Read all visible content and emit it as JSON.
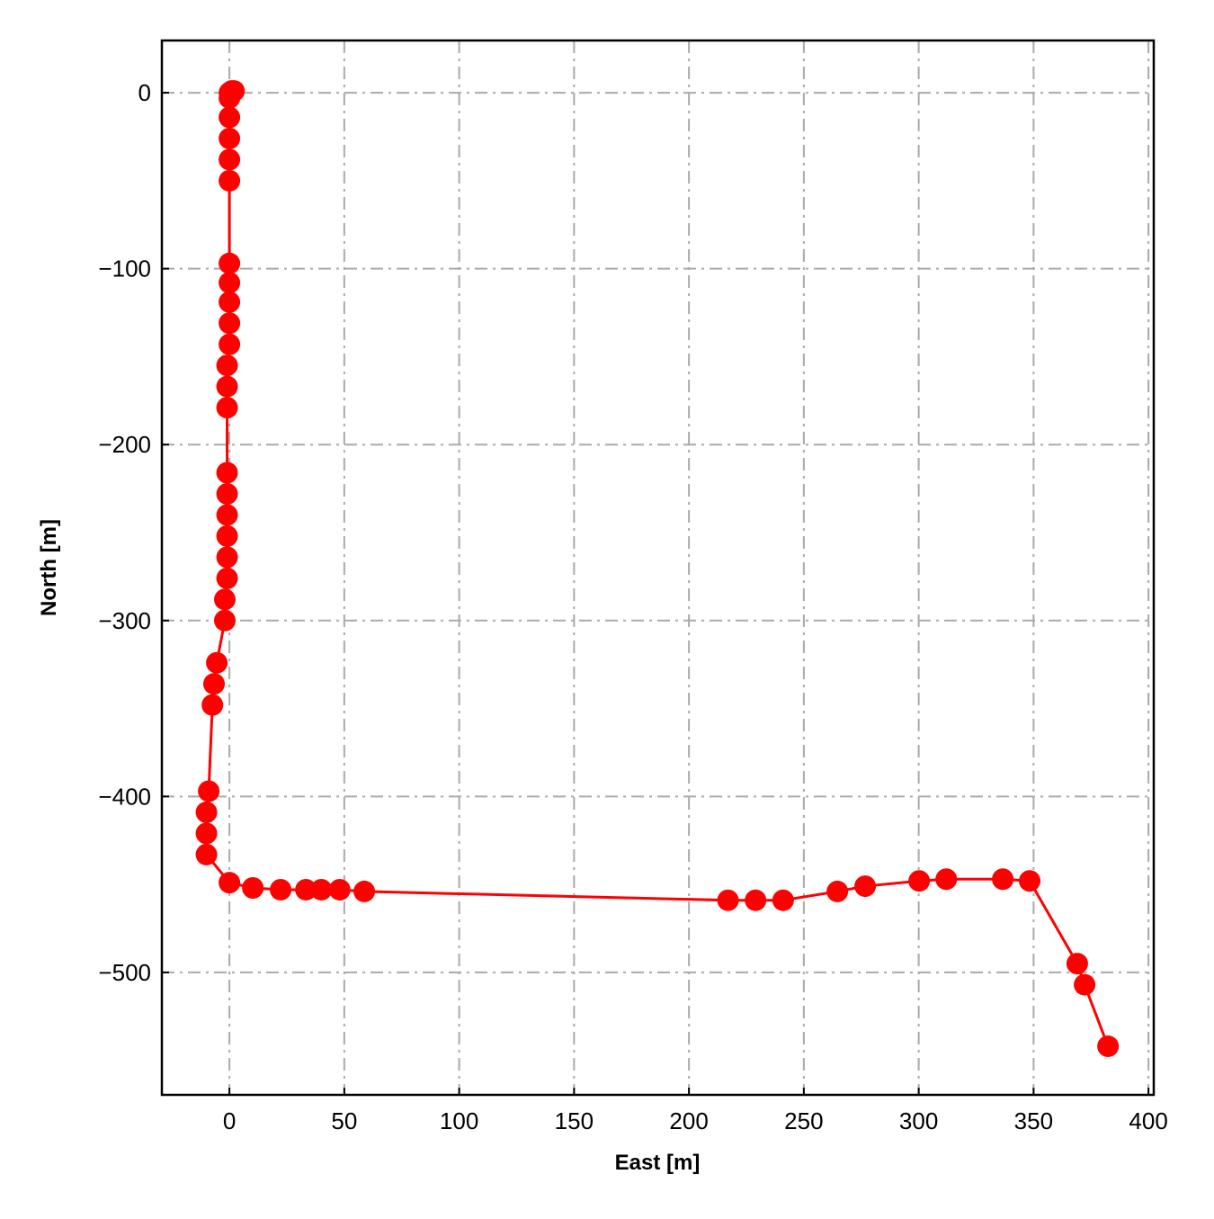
{
  "chart_data": {
    "type": "line",
    "x_label": "East [m]",
    "y_label": "North [m]",
    "series": [
      {
        "color": "#ff0000",
        "x": [
          0,
          1,
          2,
          0,
          0,
          0,
          0,
          0,
          0,
          0,
          0,
          0,
          0,
          -1,
          -1,
          -1,
          -1,
          -1,
          -1,
          -1,
          -1,
          -1,
          -2,
          -2,
          -5.5,
          -6.7,
          -7.4,
          -9,
          -10,
          -10,
          -10,
          0,
          10.2,
          22.3,
          33.3,
          40,
          48,
          58.7,
          217,
          229,
          241,
          264.6,
          276.7,
          300.2,
          312,
          336.6,
          348.3,
          369,
          372.2,
          382.4
        ],
        "y": [
          0,
          1,
          1,
          -3,
          -14,
          -26,
          -38,
          -50,
          -97,
          -108,
          -119,
          -131,
          -143,
          -155,
          -167,
          -179,
          -216,
          -228,
          -240,
          -252,
          -264,
          -276,
          -288,
          -300,
          -324,
          -336,
          -348,
          -397,
          -409,
          -421,
          -433,
          -449,
          -452,
          -453,
          -453,
          -453,
          -453,
          -454,
          -459,
          -459,
          -459,
          -454,
          -451,
          -448,
          -447,
          -447,
          -448,
          -495,
          -507,
          -542
        ]
      }
    ],
    "xlim": [
      -29.4,
      402.3
    ],
    "ylim": [
      -569.6,
      29.7
    ],
    "xticks": [
      0,
      50,
      100,
      150,
      200,
      250,
      300,
      350,
      400
    ],
    "yticks": [
      0,
      {
        "value": -100,
        "label": "−100"
      },
      {
        "value": -200,
        "label": "−200"
      },
      {
        "value": -300,
        "label": "−300"
      },
      {
        "value": -400,
        "label": "−400"
      },
      {
        "value": -500,
        "label": "−500"
      }
    ],
    "grid": true
  }
}
